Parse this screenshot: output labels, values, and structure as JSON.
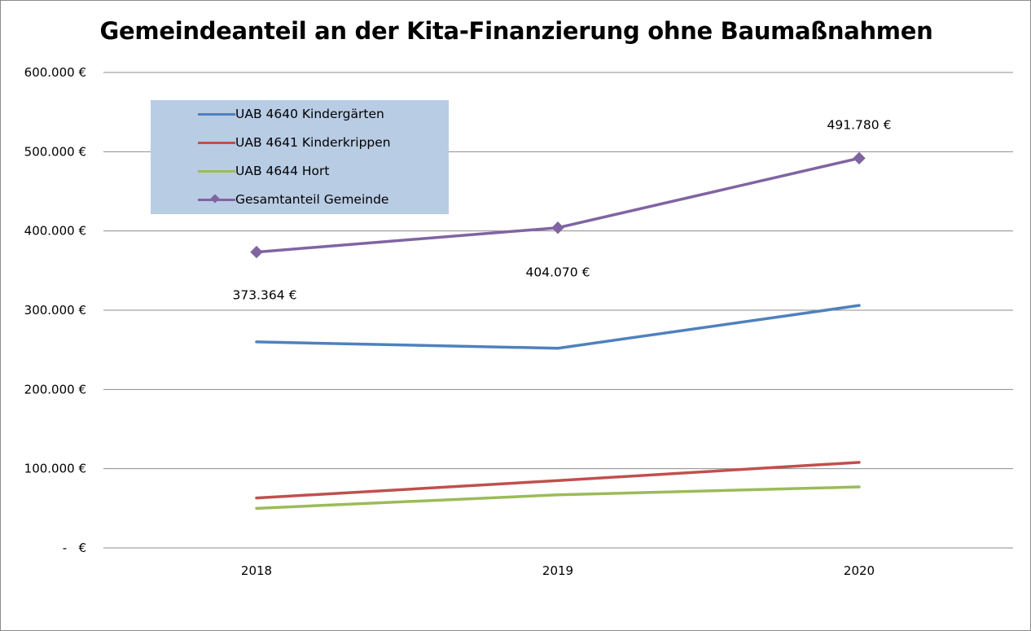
{
  "chart_data": {
    "type": "line",
    "title": "Gemeindeanteil an der Kita-Finanzierung ohne Baumaßnahmen",
    "categories": [
      "2018",
      "2019",
      "2020"
    ],
    "ylim": [
      0,
      600000
    ],
    "y_ticks": [
      {
        "value": 0,
        "label": "-   €"
      },
      {
        "value": 100000,
        "label": "100.000 €"
      },
      {
        "value": 200000,
        "label": "200.000 €"
      },
      {
        "value": 300000,
        "label": "300.000 €"
      },
      {
        "value": 400000,
        "label": "400.000 €"
      },
      {
        "value": 500000,
        "label": "500.000 €"
      },
      {
        "value": 600000,
        "label": "600.000 €"
      }
    ],
    "grid": true,
    "legend_position": "top-left",
    "series": [
      {
        "name": "UAB 4640 Kindergärten",
        "color": "#4f81bd",
        "values": [
          260000,
          252000,
          306000
        ],
        "marker": "none"
      },
      {
        "name": "UAB 4641 Kinderkrippen",
        "color": "#c0504d",
        "values": [
          63000,
          85000,
          108000
        ],
        "marker": "none"
      },
      {
        "name": "UAB 4644 Hort",
        "color": "#9bbb59",
        "values": [
          50000,
          67000,
          77000
        ],
        "marker": "none"
      },
      {
        "name": "Gesamtanteil Gemeinde",
        "color": "#8064a2",
        "values": [
          373364,
          404070,
          491780
        ],
        "marker": "diamond",
        "data_labels": [
          "373.364 €",
          "404.070 €",
          "491.780 €"
        ]
      }
    ]
  }
}
